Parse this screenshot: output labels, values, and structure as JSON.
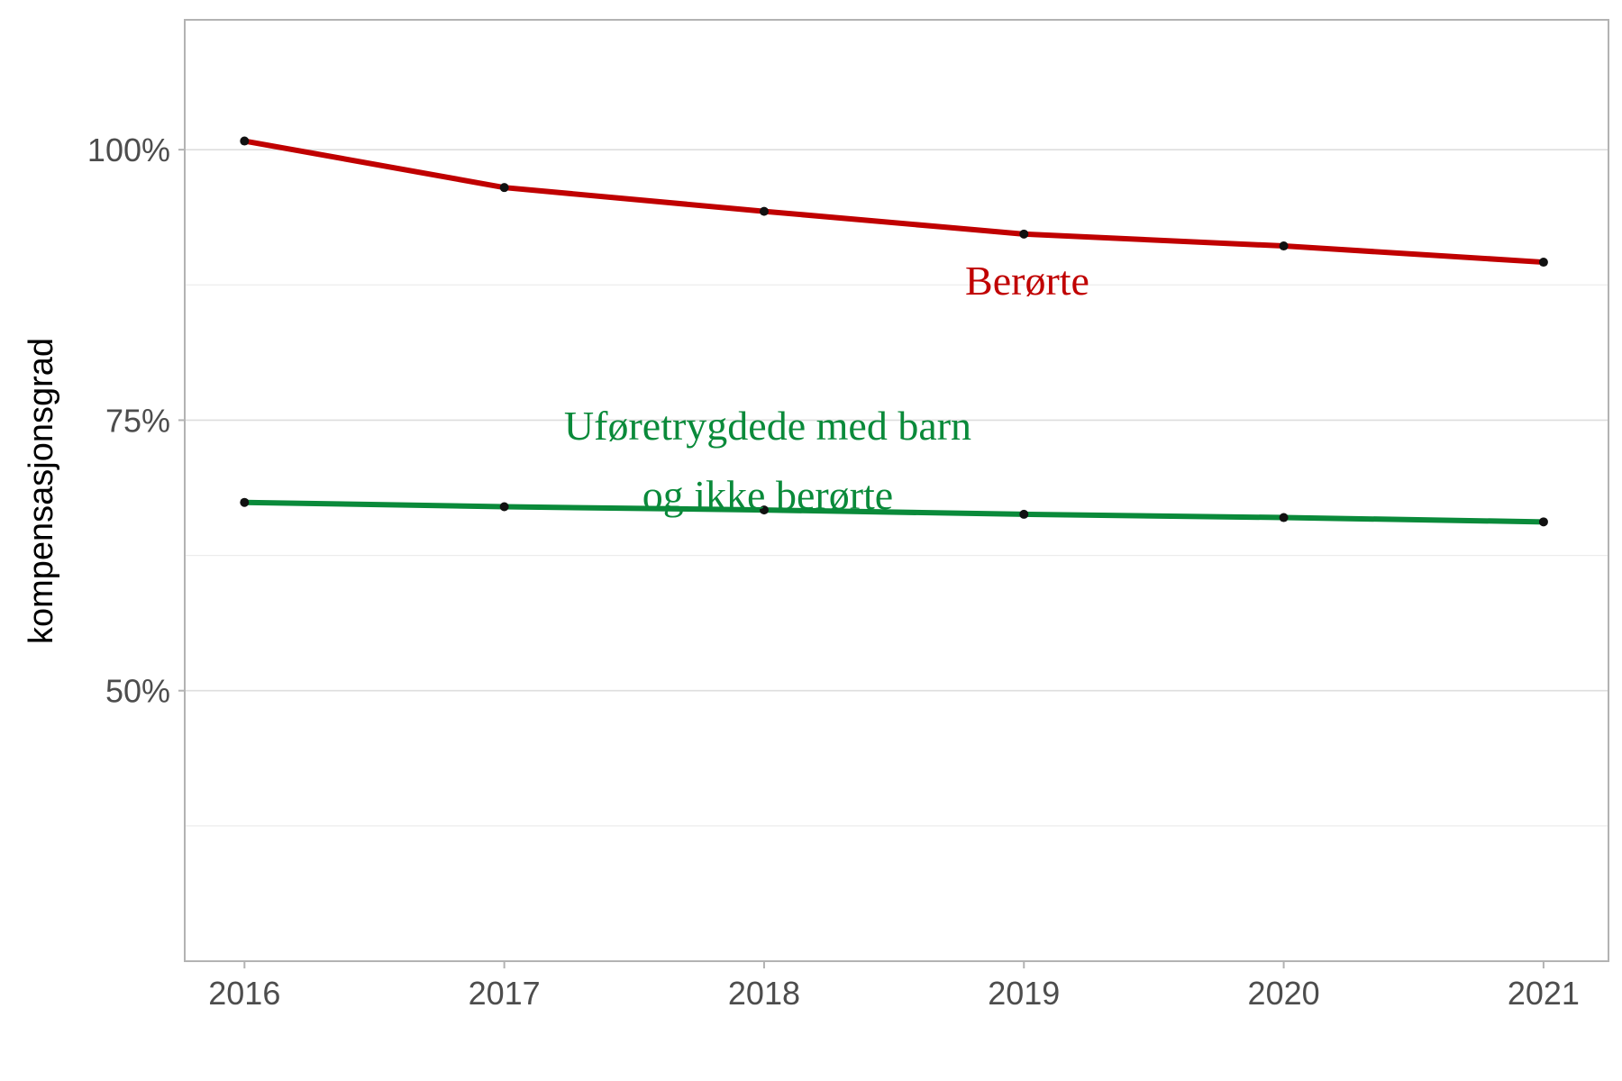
{
  "chart_data": {
    "type": "line",
    "title": "",
    "xlabel": "",
    "ylabel": "kompensasjonsgrad",
    "x": [
      2016,
      2017,
      2018,
      2019,
      2020,
      2021
    ],
    "xlim": [
      2015.77,
      2021.25
    ],
    "ylim": [
      0.25,
      1.12
    ],
    "y_major_ticks": [
      0.5,
      0.75,
      1.0
    ],
    "y_tick_labels": [
      "50%",
      "75%",
      "100%"
    ],
    "y_minor_ticks": [
      0.375,
      0.625,
      0.875,
      1.125
    ],
    "grid": true,
    "legend": "none",
    "series": [
      {
        "name": "Berørte",
        "color": "#c00000",
        "label_lines": [
          "Berørte"
        ],
        "values": [
          1.008,
          0.965,
          0.943,
          0.922,
          0.911,
          0.896
        ]
      },
      {
        "name": "Uføretrygdede med barn og ikke berørte",
        "color": "#0a8a3a",
        "label_lines": [
          "Uføretrygdede med barn",
          "og ikke berørte"
        ],
        "values": [
          0.674,
          0.67,
          0.667,
          0.663,
          0.66,
          0.656
        ]
      }
    ]
  }
}
